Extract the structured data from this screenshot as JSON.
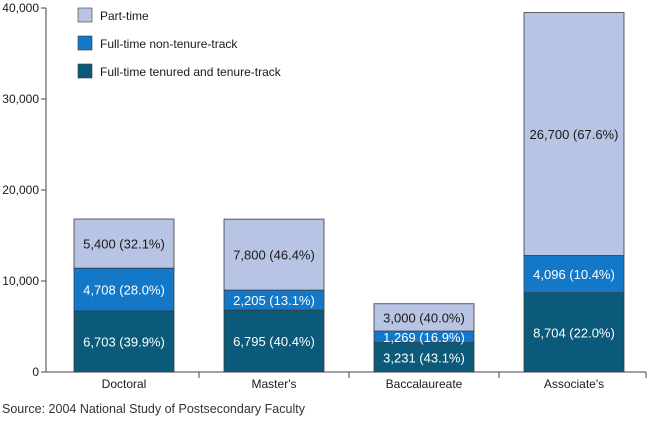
{
  "chart_data": {
    "type": "bar",
    "stacked": true,
    "categories": [
      "Doctoral",
      "Master's",
      "Baccalaureate",
      "Associate's"
    ],
    "series": [
      {
        "name": "Full-time tenured and tenure-track",
        "color": "#0b5a7a",
        "values": [
          6703,
          6795,
          3231,
          8704
        ],
        "labels": [
          "6,703  (39.9%)",
          "6,795  (40.4%)",
          "3,231  (43.1%)",
          "8,704  (22.0%)"
        ]
      },
      {
        "name": "Full-time non-tenure-track",
        "color": "#1478c8",
        "values": [
          4708,
          2205,
          1269,
          4096
        ],
        "labels": [
          "4,708  (28.0%)",
          "2,205  (13.1%)",
          "1,269  (16.9%)",
          "4,096  (10.4%)"
        ]
      },
      {
        "name": "Part-time",
        "color": "#b7c4e4",
        "values": [
          5400,
          7800,
          3000,
          26700
        ],
        "labels": [
          "5,400  (32.1%)",
          "7,800  (46.4%)",
          "3,000  (40.0%)",
          "26,700  (67.6%)"
        ]
      }
    ],
    "legend_order": [
      "Part-time",
      "Full-time non-tenure-track",
      "Full-time tenured and tenure-track"
    ],
    "y_ticks": [
      0,
      10000,
      20000,
      30000,
      40000
    ],
    "y_tick_labels": [
      "0",
      "10,000",
      "20,000",
      "30,000",
      "40,000"
    ],
    "ylim": [
      0,
      40000
    ],
    "grid": false,
    "legend_position": "top-left"
  },
  "source": "Source: 2004 National Study of Postsecondary Faculty"
}
